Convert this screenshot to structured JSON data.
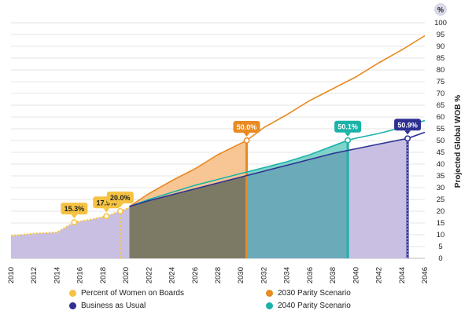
{
  "chart_data": {
    "type": "area",
    "ylabel": "Projected Global WOB %",
    "y_unit": "%",
    "xlim": [
      2010,
      2046
    ],
    "ylim": [
      0,
      100
    ],
    "x_ticks": [
      2010,
      2012,
      2014,
      2016,
      2018,
      2020,
      2022,
      2024,
      2026,
      2028,
      2030,
      2032,
      2034,
      2036,
      2038,
      2040,
      2042,
      2044,
      2046
    ],
    "y_ticks": [
      0,
      5,
      10,
      15,
      20,
      25,
      30,
      35,
      40,
      45,
      50,
      55,
      60,
      65,
      70,
      75,
      80,
      85,
      90,
      95,
      100
    ],
    "grid": true,
    "legend_position": "bottom",
    "series": [
      {
        "name": "Percent of Women on Boards",
        "color": "#F5C242",
        "x": [
          2010,
          2012,
          2014,
          2015.5,
          2017,
          2018.3,
          2019.5,
          2020.3
        ],
        "values": [
          9.5,
          10.5,
          11,
          15.3,
          16.5,
          17.9,
          20.0,
          21.5
        ]
      },
      {
        "name": "Business as Usual",
        "color": "#2E3192",
        "x": [
          2020.3,
          2022,
          2024,
          2026,
          2028,
          2030,
          2032,
          2034,
          2036,
          2038,
          2040,
          2042,
          2044.5,
          2046
        ],
        "values": [
          22,
          24.5,
          27,
          29.5,
          32,
          34.5,
          37,
          39.5,
          42,
          44.5,
          46.5,
          48.5,
          50.9,
          53.5
        ]
      },
      {
        "name": "2030 Parity Scenario",
        "color": "#E98A22",
        "x": [
          2020.3,
          2022,
          2024,
          2026,
          2028,
          2030.5,
          2032,
          2034,
          2036,
          2038,
          2040,
          2042,
          2044,
          2046
        ],
        "values": [
          22,
          27.5,
          33,
          38,
          44,
          50.0,
          55.5,
          61,
          67,
          72,
          77,
          83,
          88.5,
          94.5
        ]
      },
      {
        "name": "2040 Parity Scenario",
        "color": "#1BB3A8",
        "x": [
          2020.3,
          2022,
          2024,
          2026,
          2028,
          2030,
          2032,
          2034,
          2036,
          2039.3,
          2040,
          2042,
          2044,
          2046
        ],
        "values": [
          22,
          25,
          28,
          31,
          33.5,
          36,
          38.5,
          41,
          44,
          50.1,
          51,
          53,
          55.5,
          58.5
        ]
      }
    ],
    "annotations": [
      {
        "x": 2015.5,
        "y": 15.3,
        "label": "15.3%",
        "color": "#F5C242",
        "text_color": "#222222"
      },
      {
        "x": 2018.3,
        "y": 17.9,
        "label": "17.9%",
        "color": "#F5C242",
        "text_color": "#222222"
      },
      {
        "x": 2019.5,
        "y": 20.0,
        "label": "20.0%",
        "color": "#F5C242",
        "text_color": "#222222"
      },
      {
        "x": 2030.5,
        "y": 50.0,
        "label": "50.0%",
        "color": "#E98A22",
        "text_color": "#ffffff"
      },
      {
        "x": 2039.3,
        "y": 50.1,
        "label": "50.1%",
        "color": "#1BB3A8",
        "text_color": "#ffffff"
      },
      {
        "x": 2044.5,
        "y": 50.9,
        "label": "50.9%",
        "color": "#2E3192",
        "text_color": "#ffffff"
      }
    ],
    "fill_colors": {
      "historical": "#C9BFE3",
      "bau": "#C9BFE3",
      "parity2030": "#F7C694",
      "parity2040": "#7ED3CB",
      "overlap_early": "#7C7A64",
      "overlap_mid": "#6BAAB8"
    }
  },
  "legend": [
    {
      "label": "Percent of Women on Boards",
      "color": "#F5C242"
    },
    {
      "label": "Business as Usual",
      "color": "#2E3192"
    },
    {
      "label": "2030 Parity Scenario",
      "color": "#E98A22"
    },
    {
      "label": "2040 Parity Scenario",
      "color": "#1BB3A8"
    }
  ]
}
